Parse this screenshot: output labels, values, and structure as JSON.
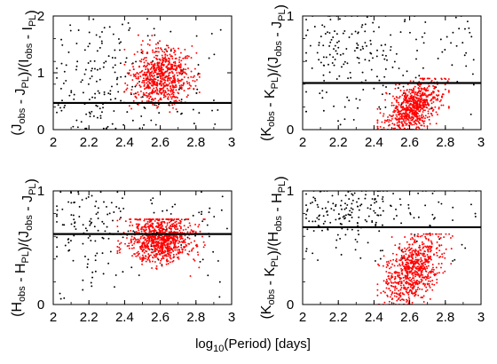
{
  "figure": {
    "xlabel_main": "log",
    "xlabel_sub": "10",
    "xlabel_rest": "(Period) [days]"
  },
  "chart_data": [
    {
      "type": "scatter",
      "panel": "top-left",
      "ylabel": {
        "parts": [
          {
            "t": "(J",
            "sub": ""
          },
          {
            "t": "",
            "sub": "obs"
          },
          {
            "t": " - J",
            "sub": ""
          },
          {
            "t": "",
            "sub": "PL"
          },
          {
            "t": ")/(I",
            "sub": ""
          },
          {
            "t": "",
            "sub": "obs"
          },
          {
            "t": " - I",
            "sub": ""
          },
          {
            "t": "",
            "sub": "PL"
          },
          {
            "t": ")",
            "sub": ""
          }
        ]
      },
      "xlim": [
        2,
        3
      ],
      "ylim": [
        0,
        2
      ],
      "xticks": [
        2,
        2.2,
        2.4,
        2.6,
        2.8,
        3
      ],
      "xtick_labels": [
        "2",
        "2.2",
        "2.4",
        "2.6",
        "2.8",
        "3"
      ],
      "yticks": [
        0,
        1,
        2
      ],
      "ytick_labels": [
        "0",
        "1",
        "2"
      ],
      "hline": 0.47,
      "grid": false,
      "series": [
        {
          "color": "#000000",
          "dist": {
            "x_mean": 2.25,
            "x_sd": 0.13,
            "x_min": 2.02,
            "x_max": 2.98,
            "y_mean": 0.75,
            "y_sd": 0.45,
            "y_min": 0.02,
            "y_max": 1.95,
            "count": 210
          }
        },
        {
          "color": "#ff0000",
          "dist": {
            "x_mean": 2.6,
            "x_sd": 0.085,
            "x_min": 2.4,
            "x_max": 2.82,
            "y_mean": 0.95,
            "y_sd": 0.25,
            "y_min": 0.3,
            "y_max": 1.9,
            "count": 720
          }
        }
      ]
    },
    {
      "type": "scatter",
      "panel": "top-right",
      "ylabel": {
        "parts": [
          {
            "t": "(K",
            "sub": ""
          },
          {
            "t": "",
            "sub": "obs"
          },
          {
            "t": " - K",
            "sub": ""
          },
          {
            "t": "",
            "sub": "PL"
          },
          {
            "t": ")/(J",
            "sub": ""
          },
          {
            "t": "",
            "sub": "obs"
          },
          {
            "t": " - J",
            "sub": ""
          },
          {
            "t": "",
            "sub": "PL"
          },
          {
            "t": ")",
            "sub": ""
          }
        ]
      },
      "xlim": [
        2,
        3
      ],
      "ylim": [
        0,
        1
      ],
      "xticks": [
        2,
        2.2,
        2.4,
        2.6,
        2.8,
        3
      ],
      "xtick_labels": [
        "2",
        "2.2",
        "2.4",
        "2.6",
        "2.8",
        "3"
      ],
      "yticks": [
        0,
        1
      ],
      "ytick_labels": [
        "0",
        "1"
      ],
      "hline": 0.41,
      "grid": false,
      "series": [
        {
          "color": "#000000",
          "dist": {
            "x_mean": 2.25,
            "x_sd": 0.14,
            "x_min": 2.02,
            "x_max": 2.98,
            "y_mean": 0.72,
            "y_sd": 0.2,
            "y_min": 0.03,
            "y_max": 1.0,
            "count": 210
          }
        },
        {
          "color": "#ff0000",
          "dist": {
            "x_mean": 2.62,
            "x_sd": 0.08,
            "x_min": 2.42,
            "x_max": 2.82,
            "y_mean": 0.2,
            "y_sd": 0.1,
            "y_min": 0.0,
            "y_max": 0.45,
            "count": 720,
            "trend": 0.9
          }
        }
      ]
    },
    {
      "type": "scatter",
      "panel": "bottom-left",
      "ylabel": {
        "parts": [
          {
            "t": "(H",
            "sub": ""
          },
          {
            "t": "",
            "sub": "obs"
          },
          {
            "t": " - H",
            "sub": ""
          },
          {
            "t": "",
            "sub": "PL"
          },
          {
            "t": ")/(J",
            "sub": ""
          },
          {
            "t": "",
            "sub": "obs"
          },
          {
            "t": " - J",
            "sub": ""
          },
          {
            "t": "",
            "sub": "PL"
          },
          {
            "t": ")",
            "sub": ""
          }
        ]
      },
      "xlim": [
        2,
        3
      ],
      "ylim": [
        0,
        1
      ],
      "xticks": [
        2,
        2.2,
        2.4,
        2.6,
        2.8,
        3
      ],
      "xtick_labels": [
        "2",
        "2.2",
        "2.4",
        "2.6",
        "2.8",
        "3"
      ],
      "yticks": [
        0,
        1
      ],
      "ytick_labels": [
        "0",
        "1"
      ],
      "hline": 0.62,
      "grid": false,
      "series": [
        {
          "color": "#000000",
          "dist": {
            "x_mean": 2.22,
            "x_sd": 0.13,
            "x_min": 2.02,
            "x_max": 2.98,
            "y_mean": 0.72,
            "y_sd": 0.2,
            "y_min": 0.05,
            "y_max": 0.99,
            "count": 170
          }
        },
        {
          "color": "#ff0000",
          "dist": {
            "x_mean": 2.6,
            "x_sd": 0.09,
            "x_min": 2.36,
            "x_max": 2.85,
            "y_mean": 0.58,
            "y_sd": 0.1,
            "y_min": 0.1,
            "y_max": 0.75,
            "count": 900
          }
        }
      ]
    },
    {
      "type": "scatter",
      "panel": "bottom-right",
      "ylabel": {
        "parts": [
          {
            "t": "(K",
            "sub": ""
          },
          {
            "t": "",
            "sub": "obs"
          },
          {
            "t": " - K",
            "sub": ""
          },
          {
            "t": "",
            "sub": "PL"
          },
          {
            "t": ")/(H",
            "sub": ""
          },
          {
            "t": "",
            "sub": "obs"
          },
          {
            "t": " - H",
            "sub": ""
          },
          {
            "t": "",
            "sub": "PL"
          },
          {
            "t": ")",
            "sub": ""
          }
        ]
      },
      "xlim": [
        2,
        3
      ],
      "ylim": [
        0,
        1
      ],
      "xticks": [
        2,
        2.2,
        2.4,
        2.6,
        2.8,
        3
      ],
      "xtick_labels": [
        "2",
        "2.2",
        "2.4",
        "2.6",
        "2.8",
        "3"
      ],
      "yticks": [
        0,
        1
      ],
      "ytick_labels": [
        "0",
        "1"
      ],
      "hline": 0.68,
      "grid": false,
      "series": [
        {
          "color": "#000000",
          "dist": {
            "x_mean": 2.25,
            "x_sd": 0.13,
            "x_min": 2.02,
            "x_max": 2.98,
            "y_mean": 0.82,
            "y_sd": 0.13,
            "y_min": 0.35,
            "y_max": 1.0,
            "count": 210
          }
        },
        {
          "color": "#ff0000",
          "dist": {
            "x_mean": 2.62,
            "x_sd": 0.08,
            "x_min": 2.42,
            "x_max": 2.84,
            "y_mean": 0.3,
            "y_sd": 0.14,
            "y_min": 0.0,
            "y_max": 0.62,
            "count": 720,
            "trend": 0.9
          }
        }
      ]
    }
  ]
}
